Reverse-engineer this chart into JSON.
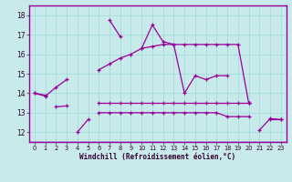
{
  "x": [
    0,
    1,
    2,
    3,
    4,
    5,
    6,
    7,
    8,
    9,
    10,
    11,
    12,
    13,
    14,
    15,
    16,
    17,
    18,
    19,
    20,
    21,
    22,
    23
  ],
  "spiky": [
    14.0,
    13.9,
    null,
    null,
    12.0,
    12.65,
    null,
    17.75,
    16.9,
    null,
    16.3,
    17.5,
    16.65,
    16.5,
    14.0,
    14.9,
    14.7,
    14.9,
    14.9,
    null,
    null,
    12.1,
    12.7,
    12.65
  ],
  "smooth": [
    14.0,
    13.85,
    14.3,
    14.7,
    null,
    null,
    15.2,
    15.5,
    15.8,
    16.0,
    16.3,
    16.4,
    16.5,
    16.5,
    16.5,
    16.5,
    16.5,
    16.5,
    16.5,
    16.5,
    13.5,
    null,
    null,
    null
  ],
  "flat1": [
    null,
    null,
    13.3,
    13.35,
    null,
    null,
    13.5,
    13.5,
    13.5,
    13.5,
    13.5,
    13.5,
    13.5,
    13.5,
    13.5,
    13.5,
    13.5,
    13.5,
    13.5,
    13.5,
    13.5,
    null,
    null,
    null
  ],
  "flat2": [
    null,
    null,
    null,
    null,
    null,
    null,
    13.0,
    13.0,
    13.0,
    13.0,
    13.0,
    13.0,
    13.0,
    13.0,
    13.0,
    13.0,
    13.0,
    13.0,
    12.8,
    12.8,
    12.8,
    null,
    null,
    null
  ],
  "tail": [
    null,
    null,
    null,
    null,
    null,
    null,
    null,
    null,
    null,
    null,
    null,
    null,
    null,
    null,
    null,
    null,
    null,
    null,
    null,
    null,
    13.5,
    null,
    12.65,
    12.65
  ],
  "bg_color": "#c8eaea",
  "line_color": "#990099",
  "grid_color": "#aadddd",
  "xlabel": "Windchill (Refroidissement éolien,°C)",
  "ylim": [
    11.5,
    18.5
  ],
  "xlim": [
    -0.5,
    23.5
  ],
  "yticks": [
    12,
    13,
    14,
    15,
    16,
    17,
    18
  ],
  "xticks": [
    0,
    1,
    2,
    3,
    4,
    5,
    6,
    7,
    8,
    9,
    10,
    11,
    12,
    13,
    14,
    15,
    16,
    17,
    18,
    19,
    20,
    21,
    22,
    23
  ]
}
